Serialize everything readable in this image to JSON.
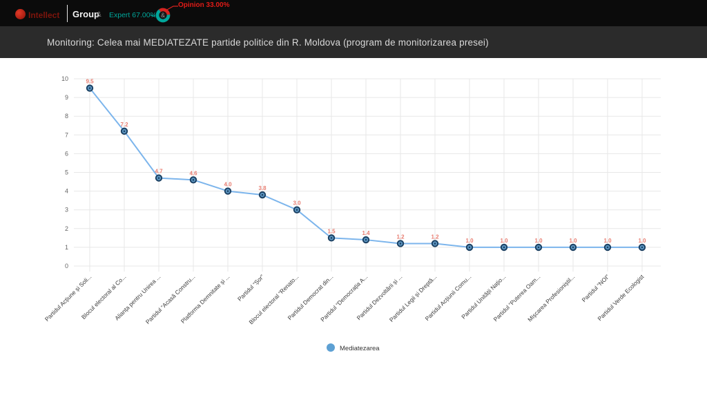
{
  "topbar": {
    "brand": {
      "name_primary": "Intellect",
      "name_secondary": "Group",
      "ampersand": "&",
      "dot_color": "#b5281e"
    },
    "expert_label": "Expert 67.00%",
    "opinion_label": "Opinion 33.00%",
    "donut": {
      "expert_pct": 67.0,
      "opinion_pct": 33.0,
      "center_glyph": "&"
    },
    "colors": {
      "expert_teal": "#00a79b",
      "opinion_red": "#e11b17"
    }
  },
  "titlebar": {
    "title": "Monitoring: Celea mai MEDIATEZATE partide politice din R. Moldova (program de monitorizarea presei)"
  },
  "chart_data": {
    "type": "line",
    "title": "",
    "xlabel": "",
    "ylabel": "",
    "ylim": [
      0,
      10
    ],
    "ytick_step": 1,
    "grid": true,
    "legend_position": "bottom",
    "categories": [
      "Partidul Acțiune și Soli...",
      "Blocul electoral al Co...",
      "Alianța pentru Unirea ...",
      "Partidul “Acasă Constru...",
      "Platforma Demnitate și ...",
      "Partidul “Șor”",
      "Blocul electoral “Renato...",
      "Partidul Democrat din...",
      "Partidul “Democrația A...",
      "Partidul Dezvoltării și ...",
      "Partidul Legii și Dreptă...",
      "Partidul Acțiunii Comu...",
      "Partidul Unității Națio...",
      "Partidul “Puterea Oam...",
      "Mișcarea Profesioniștil...",
      "Partidul “NOI”",
      "Partidul Verde Ecologist"
    ],
    "series": [
      {
        "name": "Mediatezarea",
        "values": [
          9.5,
          7.2,
          4.7,
          4.6,
          4.0,
          3.8,
          3.0,
          1.5,
          1.4,
          1.2,
          1.2,
          1.0,
          1.0,
          1.0,
          1.0,
          1.0,
          1.0
        ]
      }
    ],
    "colors": {
      "line": "#7cb5ec",
      "marker_fill": "#5e97c3",
      "marker_stroke": "#1c4163",
      "data_label": "#e77c70",
      "grid": "#e7e7e7",
      "axis_text": "#666666",
      "xlabel_text": "#3c3c3c",
      "legend_dot": "#5da0d3",
      "legend_text": "#333333"
    }
  }
}
